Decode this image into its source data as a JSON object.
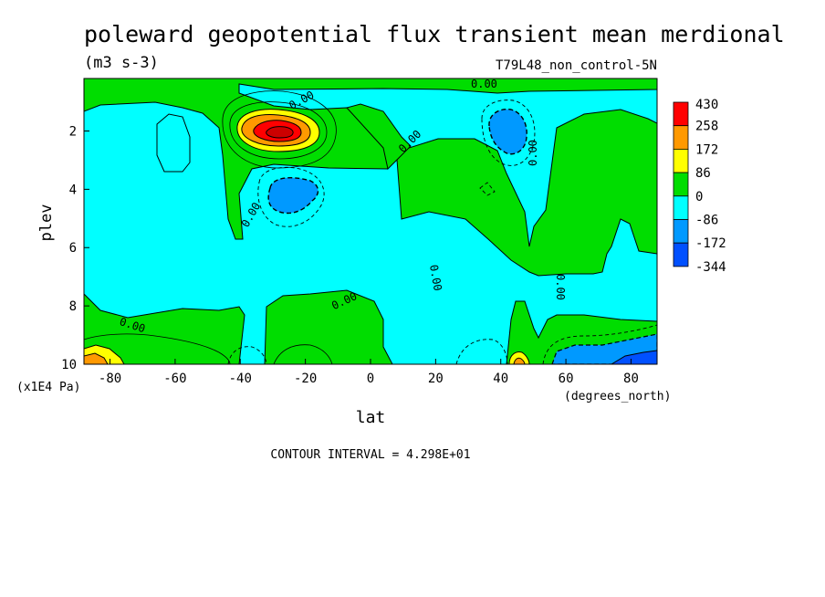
{
  "chart_data": {
    "type": "heatmap",
    "title": "poleward geopotential flux transient mean merdional",
    "units": "(m3 s-3)",
    "run_label": "T79L48_non_control-5N",
    "xlabel": "lat",
    "xunits": "(degrees_north)",
    "ylabel": "plev",
    "yunits": "(x1E4 Pa)",
    "xlim": [
      -88,
      88
    ],
    "ylim": [
      10,
      0.2
    ],
    "x_ticks": [
      -80,
      -60,
      -40,
      -20,
      0,
      20,
      40,
      60,
      80
    ],
    "y_ticks": [
      2,
      4,
      6,
      8,
      10
    ],
    "contour_interval_text": "CONTOUR INTERVAL = 4.298E+01",
    "contour_labels": [
      "0.00",
      "0.00",
      "0.00",
      "0.00",
      "0.00",
      "0.00",
      "0.00",
      "0.00",
      "0.00"
    ],
    "colorbar": {
      "levels": [
        "430",
        "258",
        "172",
        "86",
        "0",
        "-86",
        "-172",
        "-344"
      ],
      "colors": [
        "#ff0000",
        "#ff9900",
        "#ffff00",
        "#00dd00",
        "#00ffff",
        "#0099ff",
        "#0050ff"
      ]
    },
    "fill_colors": {
      "positive": "#00dd00",
      "negative": "#00ffff",
      "neg2": "#0099ff",
      "pos2": "#ffff00",
      "pos3": "#ff9900",
      "pos4": "#ff0000",
      "pos5": "#cc0000"
    },
    "features": [
      {
        "name": "upper-troposphere jet flux maximum",
        "lat": -30,
        "plev": 2.0,
        "value": 430
      },
      {
        "name": "southern mid-latitude minimum",
        "lat": -30,
        "plev": 4.0,
        "value": -172
      },
      {
        "name": "northern upper minimum",
        "lat": 43,
        "plev": 2.0,
        "value": -172
      },
      {
        "name": "southern polar surface maximum",
        "lat": -85,
        "plev": 9.9,
        "value": 172
      },
      {
        "name": "northern surface maximum",
        "lat": 46,
        "plev": 9.9,
        "value": 172
      },
      {
        "name": "northern polar surface minimum",
        "lat": 78,
        "plev": 9.7,
        "value": -172
      }
    ]
  }
}
